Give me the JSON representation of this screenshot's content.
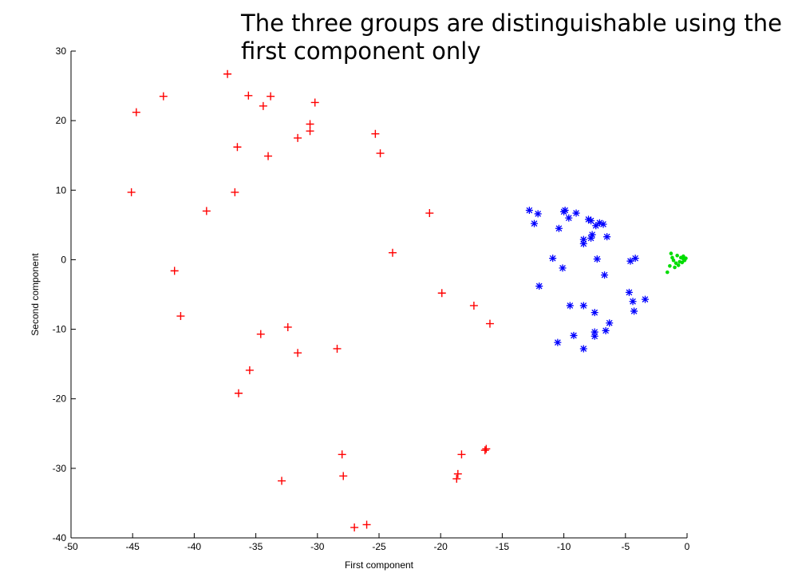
{
  "annotation": "The three groups are distinguishable using the first component only",
  "chart_data": {
    "type": "scatter",
    "title": "",
    "xlabel": "First component",
    "ylabel": "Second component",
    "xlim": [
      -50,
      0
    ],
    "ylim": [
      -40,
      30
    ],
    "xticks": [
      -50,
      -45,
      -40,
      -35,
      -30,
      -25,
      -20,
      -15,
      -10,
      -5,
      0
    ],
    "yticks": [
      -40,
      -30,
      -20,
      -10,
      0,
      10,
      20,
      30
    ],
    "grid": false,
    "series": [
      {
        "marker": "plus",
        "color": "#ff0000",
        "points": [
          [
            -37.3,
            26.7
          ],
          [
            -42.5,
            23.5
          ],
          [
            -35.6,
            23.6
          ],
          [
            -33.8,
            23.5
          ],
          [
            -44.7,
            21.2
          ],
          [
            -34.4,
            22.1
          ],
          [
            -30.2,
            22.6
          ],
          [
            -30.6,
            19.5
          ],
          [
            -30.6,
            18.5
          ],
          [
            -31.6,
            17.5
          ],
          [
            -25.3,
            18.1
          ],
          [
            -36.5,
            16.2
          ],
          [
            -24.9,
            15.3
          ],
          [
            -34.0,
            14.9
          ],
          [
            -45.1,
            9.7
          ],
          [
            -36.7,
            9.7
          ],
          [
            -39.0,
            7.0
          ],
          [
            -20.9,
            6.7
          ],
          [
            -23.9,
            1.0
          ],
          [
            -41.6,
            -1.6
          ],
          [
            -19.9,
            -4.8
          ],
          [
            -17.3,
            -6.6
          ],
          [
            -41.1,
            -8.1
          ],
          [
            -16.0,
            -9.2
          ],
          [
            -32.4,
            -9.7
          ],
          [
            -34.6,
            -10.7
          ],
          [
            -31.6,
            -13.4
          ],
          [
            -28.4,
            -12.8
          ],
          [
            -35.5,
            -15.9
          ],
          [
            -36.4,
            -19.2
          ],
          [
            -28.0,
            -28.0
          ],
          [
            -18.3,
            -28.0
          ],
          [
            -16.4,
            -27.4
          ],
          [
            -16.3,
            -27.2
          ],
          [
            -27.9,
            -31.1
          ],
          [
            -18.6,
            -30.8
          ],
          [
            -18.7,
            -31.5
          ],
          [
            -32.9,
            -31.8
          ],
          [
            -27.0,
            -38.5
          ],
          [
            -26.0,
            -38.1
          ]
        ]
      },
      {
        "marker": "star",
        "color": "#0000ff",
        "points": [
          [
            -12.8,
            7.1
          ],
          [
            -12.1,
            6.6
          ],
          [
            -10.0,
            6.9
          ],
          [
            -9.9,
            7.1
          ],
          [
            -9.6,
            6.0
          ],
          [
            -9.0,
            6.7
          ],
          [
            -12.4,
            5.2
          ],
          [
            -10.4,
            4.5
          ],
          [
            -8.0,
            5.8
          ],
          [
            -7.8,
            5.6
          ],
          [
            -7.4,
            4.9
          ],
          [
            -7.1,
            5.3
          ],
          [
            -6.8,
            5.1
          ],
          [
            -7.7,
            3.6
          ],
          [
            -7.8,
            3.1
          ],
          [
            -8.4,
            2.9
          ],
          [
            -8.4,
            2.3
          ],
          [
            -6.5,
            3.3
          ],
          [
            -10.9,
            0.2
          ],
          [
            -10.1,
            -1.2
          ],
          [
            -7.3,
            0.1
          ],
          [
            -4.6,
            -0.2
          ],
          [
            -4.2,
            0.2
          ],
          [
            -12.0,
            -3.8
          ],
          [
            -6.7,
            -2.2
          ],
          [
            -4.7,
            -4.7
          ],
          [
            -4.4,
            -6.0
          ],
          [
            -3.4,
            -5.7
          ],
          [
            -4.3,
            -7.4
          ],
          [
            -9.5,
            -6.6
          ],
          [
            -8.4,
            -6.6
          ],
          [
            -7.5,
            -7.6
          ],
          [
            -6.3,
            -9.1
          ],
          [
            -7.5,
            -10.4
          ],
          [
            -7.5,
            -11.0
          ],
          [
            -9.2,
            -10.9
          ],
          [
            -6.6,
            -10.2
          ],
          [
            -10.5,
            -11.9
          ],
          [
            -8.4,
            -12.8
          ]
        ]
      },
      {
        "marker": "dot",
        "color": "#00dd00",
        "points": [
          [
            -1.3,
            0.9
          ],
          [
            -0.8,
            0.6
          ],
          [
            -0.5,
            0.3
          ],
          [
            -0.3,
            0.1
          ],
          [
            -0.2,
            -0.1
          ],
          [
            -0.6,
            -0.3
          ],
          [
            -0.9,
            -0.5
          ],
          [
            -1.1,
            -0.1
          ],
          [
            -1.4,
            -0.9
          ],
          [
            -1.0,
            -1.1
          ],
          [
            -0.7,
            -0.8
          ],
          [
            -0.4,
            -0.4
          ],
          [
            -0.1,
            0.2
          ],
          [
            -0.3,
            0.5
          ],
          [
            -1.2,
            0.3
          ],
          [
            -1.6,
            -1.8
          ]
        ]
      }
    ]
  }
}
